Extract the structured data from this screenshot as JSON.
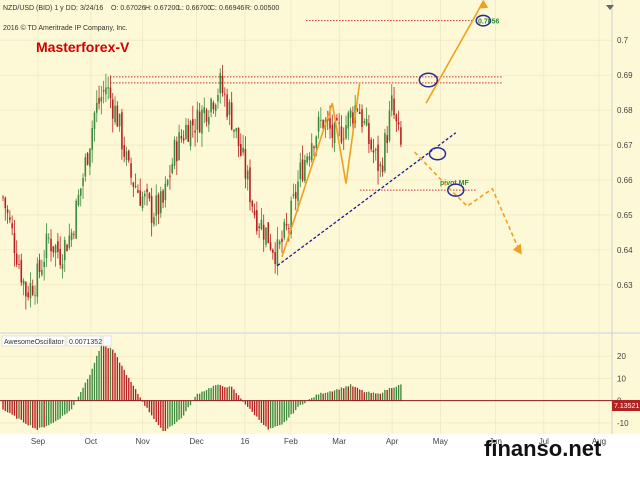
{
  "header": {
    "symbol": "NZD/USD (BID) 1 y D",
    "date": "D: 3/24/16",
    "open": "O: 0.67026",
    "high": "H: 0.67200",
    "low": "L: 0.66700",
    "close": "C: 0.66946",
    "range": "R: 0.00500",
    "copyright": "2016 © TD Ameritrade IP Company, Inc.",
    "brand": "Masterforex-V"
  },
  "toolbar_icon": "dropdown-arrow-icon",
  "indicator": {
    "name": "AwesomeOscillator",
    "value": "0.0071352",
    "current_tag": "7.13521",
    "y_ticks": [
      "20",
      "10",
      "0",
      "-10"
    ]
  },
  "watermark": "finanso.net",
  "levels": {
    "label_0": "0.7056",
    "label_1": "pivot MF"
  },
  "colors": {
    "price_bg": "#fdf8d5",
    "bull": "#3d8a3d",
    "bear": "#b82020",
    "level_line": "#cc3333",
    "trend_line": "#1a1a99",
    "arrow": "#f0a020",
    "circle": "#2a2a99",
    "osc_up": "#3d8a3d",
    "osc_down": "#b82020"
  },
  "chart_data": [
    {
      "type": "candlestick",
      "series": "NZD/USD daily",
      "x_labels": [
        "Sep",
        "Oct",
        "Nov",
        "Dec",
        "16",
        "Feb",
        "Mar",
        "Apr",
        "May",
        "Jun",
        "Jul",
        "Aug"
      ],
      "y_ticks": [
        "0.7",
        "0.69",
        "0.68",
        "0.67",
        "0.66",
        "0.65",
        "0.64",
        "0.63"
      ],
      "ylim": [
        0.6165,
        0.7115
      ],
      "ohlc_anchors": [
        {
          "t": 0,
          "close": 0.655
        },
        {
          "t": 5,
          "close": 0.642
        },
        {
          "t": 10,
          "close": 0.628
        },
        {
          "t": 15,
          "close": 0.632
        },
        {
          "t": 20,
          "close": 0.643
        },
        {
          "t": 25,
          "close": 0.639
        },
        {
          "t": 30,
          "close": 0.645
        },
        {
          "t": 35,
          "close": 0.661
        },
        {
          "t": 40,
          "close": 0.679
        },
        {
          "t": 45,
          "close": 0.687
        },
        {
          "t": 50,
          "close": 0.678
        },
        {
          "t": 55,
          "close": 0.662
        },
        {
          "t": 60,
          "close": 0.656
        },
        {
          "t": 65,
          "close": 0.651
        },
        {
          "t": 70,
          "close": 0.653
        },
        {
          "t": 75,
          "close": 0.668
        },
        {
          "t": 80,
          "close": 0.675
        },
        {
          "t": 85,
          "close": 0.677
        },
        {
          "t": 90,
          "close": 0.682
        },
        {
          "t": 95,
          "close": 0.687
        },
        {
          "t": 100,
          "close": 0.678
        },
        {
          "t": 105,
          "close": 0.665
        },
        {
          "t": 110,
          "close": 0.651
        },
        {
          "t": 115,
          "close": 0.645
        },
        {
          "t": 120,
          "close": 0.639
        },
        {
          "t": 125,
          "close": 0.647
        },
        {
          "t": 130,
          "close": 0.662
        },
        {
          "t": 135,
          "close": 0.672
        },
        {
          "t": 140,
          "close": 0.677
        },
        {
          "t": 145,
          "close": 0.672
        },
        {
          "t": 150,
          "close": 0.676
        },
        {
          "t": 155,
          "close": 0.682
        },
        {
          "t": 160,
          "close": 0.671
        },
        {
          "t": 165,
          "close": 0.663
        },
        {
          "t": 170,
          "close": 0.681
        },
        {
          "t": 174,
          "close": 0.669
        }
      ],
      "horizontal_levels": [
        0.7056,
        0.6895,
        0.6878,
        0.6571
      ],
      "trend_line": [
        {
          "t": 120,
          "price": 0.6355
        },
        {
          "t": 198,
          "price": 0.6735
        }
      ],
      "forecast_up": [
        {
          "t": 185,
          "price": 0.682
        },
        {
          "t": 210,
          "price": 0.711
        }
      ],
      "forecast_down": [
        {
          "t": 180,
          "price": 0.668
        },
        {
          "t": 196,
          "price": 0.657
        },
        {
          "t": 203,
          "price": 0.6525
        },
        {
          "t": 214,
          "price": 0.6575
        },
        {
          "t": 226,
          "price": 0.6395
        }
      ],
      "pattern_zigzag": [
        {
          "t": 122,
          "price": 0.638
        },
        {
          "t": 144,
          "price": 0.682
        },
        {
          "t": 150,
          "price": 0.659
        },
        {
          "t": 156,
          "price": 0.688
        }
      ]
    },
    {
      "type": "bar",
      "series": "AwesomeOscillator",
      "ylim": [
        -15,
        30
      ],
      "anchors": [
        {
          "t": 0,
          "v": -4
        },
        {
          "t": 8,
          "v": -9
        },
        {
          "t": 15,
          "v": -13
        },
        {
          "t": 22,
          "v": -10
        },
        {
          "t": 30,
          "v": -4
        },
        {
          "t": 38,
          "v": 12
        },
        {
          "t": 43,
          "v": 25
        },
        {
          "t": 48,
          "v": 23
        },
        {
          "t": 55,
          "v": 10
        },
        {
          "t": 62,
          "v": -2
        },
        {
          "t": 70,
          "v": -14
        },
        {
          "t": 78,
          "v": -8
        },
        {
          "t": 85,
          "v": 3
        },
        {
          "t": 93,
          "v": 7
        },
        {
          "t": 100,
          "v": 6
        },
        {
          "t": 108,
          "v": -4
        },
        {
          "t": 116,
          "v": -13
        },
        {
          "t": 122,
          "v": -11
        },
        {
          "t": 130,
          "v": -2
        },
        {
          "t": 138,
          "v": 3
        },
        {
          "t": 146,
          "v": 5
        },
        {
          "t": 152,
          "v": 7
        },
        {
          "t": 158,
          "v": 4
        },
        {
          "t": 164,
          "v": 3
        },
        {
          "t": 170,
          "v": 6
        },
        {
          "t": 174,
          "v": 7.1
        }
      ]
    }
  ]
}
